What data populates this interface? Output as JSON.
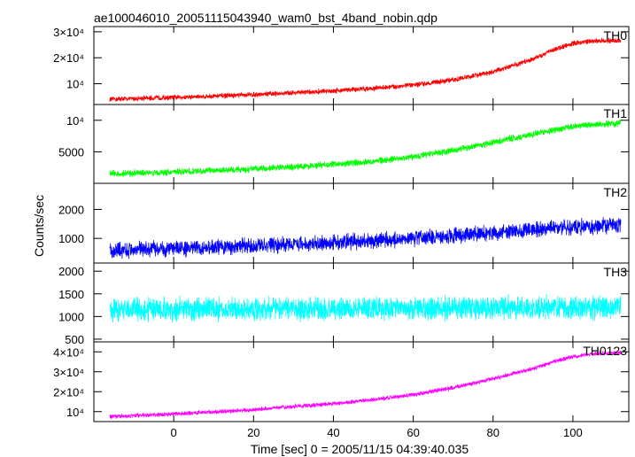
{
  "title": "ae100046010_20051115043940_wam0_bst_4band_nobin.qdp",
  "xlabel": "Time [sec] 0 = 2005/11/15 04:39:40.035",
  "ylabel": "Counts/sec",
  "x_ticks": [
    {
      "value": 0,
      "label": "0"
    },
    {
      "value": 20,
      "label": "20"
    },
    {
      "value": 40,
      "label": "40"
    },
    {
      "value": 60,
      "label": "60"
    },
    {
      "value": 80,
      "label": "80"
    },
    {
      "value": 100,
      "label": "100"
    }
  ],
  "chart_data": [
    {
      "type": "line",
      "series": [
        {
          "name": "TH0",
          "color": "#ff0000",
          "x": [
            -16,
            -10,
            0,
            10,
            20,
            30,
            40,
            50,
            60,
            70,
            80,
            90,
            95,
            100,
            105,
            112
          ],
          "y": [
            4000,
            4300,
            4700,
            5200,
            5800,
            6500,
            7300,
            8200,
            9500,
            11500,
            14500,
            19500,
            23000,
            25500,
            26500,
            26500
          ],
          "noise": 1200
        }
      ],
      "xlim": [
        -20,
        114
      ],
      "ylim": [
        2000,
        32000
      ],
      "yticks": [
        {
          "value": 10000,
          "label": "10⁴"
        },
        {
          "value": 20000,
          "label": "2×10⁴"
        },
        {
          "value": 30000,
          "label": "3×10⁴"
        }
      ]
    },
    {
      "type": "line",
      "series": [
        {
          "name": "TH1",
          "color": "#00ff00",
          "x": [
            -16,
            -10,
            0,
            10,
            20,
            30,
            40,
            50,
            60,
            70,
            80,
            90,
            100,
            105,
            112
          ],
          "y": [
            1500,
            1600,
            1800,
            2000,
            2300,
            2600,
            3000,
            3500,
            4200,
            5200,
            6500,
            7800,
            9000,
            9300,
            9500
          ],
          "noise": 650
        }
      ],
      "xlim": [
        -20,
        114
      ],
      "ylim": [
        0,
        12500
      ],
      "yticks": [
        {
          "value": 5000,
          "label": "5000"
        },
        {
          "value": 10000,
          "label": "10⁴"
        }
      ]
    },
    {
      "type": "line",
      "series": [
        {
          "name": "TH2",
          "color": "#0000ff",
          "x": [
            -16,
            0,
            20,
            40,
            60,
            80,
            100,
            112
          ],
          "y": [
            600,
            650,
            750,
            850,
            1000,
            1200,
            1400,
            1450
          ],
          "noise": 330
        }
      ],
      "xlim": [
        -20,
        114
      ],
      "ylim": [
        150,
        2900
      ],
      "yticks": [
        {
          "value": 1000,
          "label": "1000"
        },
        {
          "value": 2000,
          "label": "2000"
        }
      ]
    },
    {
      "type": "line",
      "series": [
        {
          "name": "TH3",
          "color": "#00ffff",
          "x": [
            -16,
            0,
            40,
            80,
            112
          ],
          "y": [
            1150,
            1160,
            1170,
            1190,
            1210
          ],
          "noise": 310
        }
      ],
      "xlim": [
        -20,
        114
      ],
      "ylim": [
        440,
        2180
      ],
      "yticks": [
        {
          "value": 500,
          "label": "500"
        },
        {
          "value": 1000,
          "label": "1000"
        },
        {
          "value": 1500,
          "label": "1500"
        },
        {
          "value": 2000,
          "label": "2000"
        }
      ]
    },
    {
      "type": "line",
      "series": [
        {
          "name": "TH0123",
          "color": "#ff00ff",
          "x": [
            -16,
            -10,
            0,
            10,
            20,
            30,
            40,
            50,
            60,
            70,
            80,
            90,
            95,
            100,
            105,
            112
          ],
          "y": [
            7500,
            8000,
            8800,
            9800,
            11000,
            12500,
            14000,
            16000,
            18500,
            22000,
            26500,
            31500,
            35000,
            37500,
            39000,
            39500
          ],
          "noise": 1300
        }
      ],
      "xlim": [
        -20,
        114
      ],
      "ylim": [
        5000,
        45000
      ],
      "yticks": [
        {
          "value": 10000,
          "label": "10⁴"
        },
        {
          "value": 20000,
          "label": "2×10⁴"
        },
        {
          "value": 30000,
          "label": "3×10⁴"
        },
        {
          "value": 40000,
          "label": "4×10⁴"
        }
      ]
    }
  ]
}
